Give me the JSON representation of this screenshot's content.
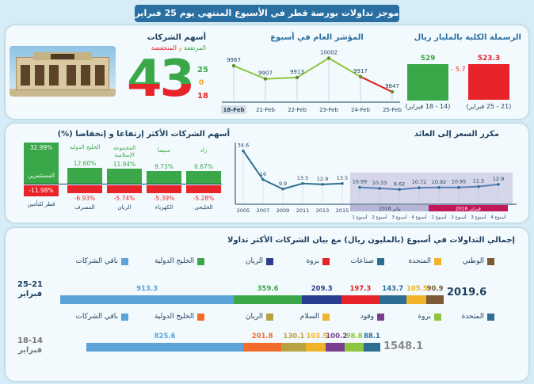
{
  "header": {
    "title": "موجز تداولات بورصة قطر في الأسبوع المنتهي يوم 25 فبراير 2016"
  },
  "market_cap": {
    "title": "الرسملة الكلية بالمليار ريال",
    "change": "- 5.7",
    "bars": [
      {
        "value": "529",
        "period": "(14 - 18 فبراير)",
        "num": 529,
        "color": "#3aa849"
      },
      {
        "value": "523.3",
        "period": "(21 - 25 فبراير)",
        "num": 523.3,
        "color": "#e8232a"
      }
    ]
  },
  "index_chart": {
    "title": "المؤشر العام في أسبوع",
    "x": [
      "18-Feb",
      "21-Feb",
      "22-Feb",
      "23-Feb",
      "24-Feb",
      "25-Feb"
    ],
    "y": [
      9967,
      9907,
      9913,
      10002,
      9917,
      9847
    ],
    "labels": [
      "9967",
      "9907",
      "9913",
      "10002",
      "9917",
      "9847"
    ]
  },
  "companies": {
    "title": "أسهم الشركات",
    "subtitle_up": "المرتفعة",
    "subtitle_and": " و ",
    "subtitle_down": "المنخفضة",
    "total": "43",
    "up": "25",
    "flat": "0",
    "down": "18"
  },
  "movers": {
    "title": "أسهم الشركات الأكثر إرتفاعا و إنخفاضا",
    "unit": "(%)",
    "up": [
      {
        "name": "زاد",
        "value": "6.67%"
      },
      {
        "name": "سينما",
        "value": "9.73%"
      },
      {
        "name": "المجموعة الإسلامية",
        "value": "11.94%"
      },
      {
        "name": "الخليج الدولية",
        "value": "12.60%"
      },
      {
        "name": "المستثمرين",
        "value": "32.99%"
      }
    ],
    "down": [
      {
        "name": "الخليجي",
        "value": "-5.28%"
      },
      {
        "name": "الكهرباء",
        "value": "-5.39%"
      },
      {
        "name": "الريان",
        "value": "-5.74%"
      },
      {
        "name": "المصرف",
        "value": "-6.93%"
      },
      {
        "name": "قطر للتأمين",
        "value": "-11.98%"
      }
    ]
  },
  "pe_chart": {
    "title": "مكرر السعر إلى العائد",
    "years": [
      "2005",
      "2007",
      "2009",
      "2011",
      "2013",
      "2015"
    ],
    "year_values": [
      34.6,
      16,
      9.9,
      13.5,
      12.9,
      13.5
    ],
    "weeks": [
      "أسبوع 1",
      "أسبوع 2",
      "أسبوع 3",
      "أسبوع 4",
      "أسبوع 1",
      "أسبوع 2",
      "أسبوع 3",
      "أسبوع 4"
    ],
    "week_values": [
      10.99,
      10.33,
      9.62,
      10.72,
      10.92,
      10.95,
      11.5,
      12.9
    ],
    "labels": [
      "34.6",
      "16",
      "9.9",
      "13.5",
      "12.9",
      "13.5",
      "10.99",
      "10.33",
      "9.62",
      "10.72",
      "10.92",
      "10.95",
      "11.5",
      "12.9"
    ],
    "jan_label": "يناير 2016",
    "feb_label": "فبراير 2016"
  },
  "volume": {
    "title": "إجمالي التداولات في أسبوع (بالمليون ريال) مع بيان الشركات الأكثر تداولا",
    "week1": {
      "label": "25-21 فبراير",
      "total": "2019.6",
      "total_num": 2019.6,
      "legend": [
        "الوطني",
        "المتحدة",
        "صناعات",
        "بروة",
        "الريان",
        "الخليج الدولية",
        "باقي الشركات"
      ],
      "segments": [
        {
          "name": "الوطني",
          "value": 90.9,
          "label": "90.9",
          "color": "#7b5a34"
        },
        {
          "name": "المتحدة",
          "value": 105.5,
          "label": "105.5",
          "color": "#f0b32a"
        },
        {
          "name": "صناعات",
          "value": 143.7,
          "label": "143.7",
          "color": "#2d6f93"
        },
        {
          "name": "بروة",
          "value": 197.3,
          "label": "197.3",
          "color": "#e8232a"
        },
        {
          "name": "الريان",
          "value": 209.3,
          "label": "209.3",
          "color": "#2b3d8f"
        },
        {
          "name": "الخليج الدولية",
          "value": 359.6,
          "label": "359.6",
          "color": "#3aa849"
        },
        {
          "name": "باقي الشركات",
          "value": 913.3,
          "label": "913.3",
          "color": "#5ba3d9"
        }
      ]
    },
    "week2": {
      "label": "18-14 فبراير",
      "total": "1548.1",
      "total_num": 1548.1,
      "legend": [
        "المتحدة",
        "بروة",
        "وقود",
        "السلام",
        "الريان",
        "الخليج الدولية",
        "باقي الشركات"
      ],
      "segments": [
        {
          "name": "المتحدة",
          "value": 88.1,
          "label": "88.1",
          "color": "#2d6f93"
        },
        {
          "name": "بروة",
          "value": 98.8,
          "label": "98.8",
          "color": "#8dc63f"
        },
        {
          "name": "وقود",
          "value": 100.2,
          "label": "100.2",
          "color": "#7a3f8f"
        },
        {
          "name": "السلام",
          "value": 103.5,
          "label": "103.5",
          "color": "#f0b32a"
        },
        {
          "name": "الريان",
          "value": 130.1,
          "label": "130.1",
          "color": "#b8a340"
        },
        {
          "name": "الخليج الدولية",
          "value": 201.8,
          "label": "201.8",
          "color": "#f26b2a"
        },
        {
          "name": "باقي الشركات",
          "value": 825.6,
          "label": "825.6",
          "color": "#5ba3d9"
        }
      ]
    }
  }
}
